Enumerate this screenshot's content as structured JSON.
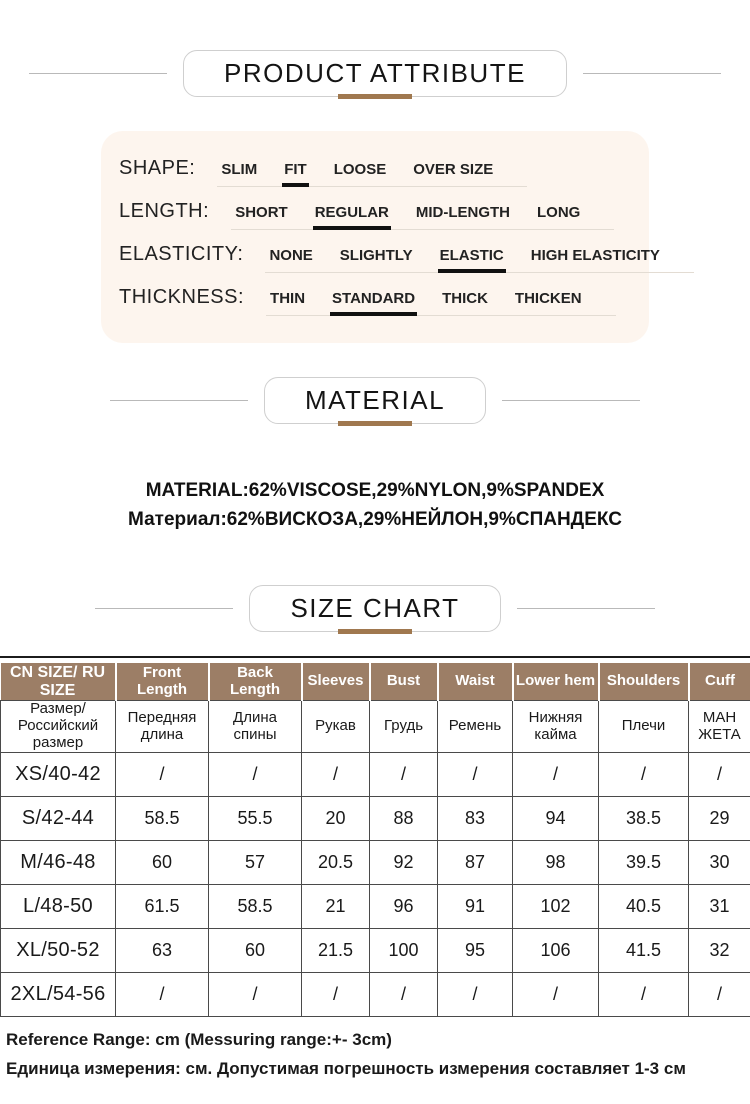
{
  "colors": {
    "accent_brown": "#9c7e66",
    "underline_brown": "#a0784f",
    "panel_bg": "#fdf5ee"
  },
  "sections": {
    "product_attribute_title": "PRODUCT ATTRIBUTE",
    "material_title": "MATERIAL",
    "size_chart_title": "SIZE CHART"
  },
  "attributes": {
    "rows": [
      {
        "label": "SHAPE:",
        "options": [
          "SLIM",
          "FIT",
          "LOOSE",
          "OVER SIZE"
        ],
        "selected": "FIT"
      },
      {
        "label": "LENGTH:",
        "options": [
          "SHORT",
          "REGULAR",
          "MID-LENGTH",
          "LONG"
        ],
        "selected": "REGULAR"
      },
      {
        "label": "ELASTICITY:",
        "options": [
          "NONE",
          "SLIGHTLY",
          "ELASTIC",
          "HIGH ELASTICITY"
        ],
        "selected": "ELASTIC"
      },
      {
        "label": "THICKNESS:",
        "options": [
          "THIN",
          "STANDARD",
          "THICK",
          "THICKEN"
        ],
        "selected": "STANDARD"
      }
    ]
  },
  "material": {
    "line_en": "MATERIAL:62%VISCOSE,29%NYLON,9%SPANDEX",
    "line_ru": "Материал:62%ВИСКОЗА,29%НЕЙЛОН,9%СПАНДЕКС"
  },
  "size_chart": {
    "columns_en": [
      "CN SIZE/ RU SIZE",
      "Front Length",
      "Back Length",
      "Sleeves",
      "Bust",
      "Waist",
      "Lower hem",
      "Shoulders",
      "Cuff"
    ],
    "columns_ru": [
      "Размер/ Российский размер",
      "Передняя длина",
      "Длина спины",
      "Рукав",
      "Грудь",
      "Ремень",
      "Нижняя кайма",
      "Плечи",
      "МАН ЖЕТА"
    ],
    "rows": [
      {
        "size": "XS/40-42",
        "values": [
          "/",
          "/",
          "/",
          "/",
          "/",
          "/",
          "/",
          "/"
        ]
      },
      {
        "size": "S/42-44",
        "values": [
          "58.5",
          "55.5",
          "20",
          "88",
          "83",
          "94",
          "38.5",
          "29"
        ]
      },
      {
        "size": "M/46-48",
        "values": [
          "60",
          "57",
          "20.5",
          "92",
          "87",
          "98",
          "39.5",
          "30"
        ]
      },
      {
        "size": "L/48-50",
        "values": [
          "61.5",
          "58.5",
          "21",
          "96",
          "91",
          "102",
          "40.5",
          "31"
        ]
      },
      {
        "size": "XL/50-52",
        "values": [
          "63",
          "60",
          "21.5",
          "100",
          "95",
          "106",
          "41.5",
          "32"
        ]
      },
      {
        "size": "2XL/54-56",
        "values": [
          "/",
          "/",
          "/",
          "/",
          "/",
          "/",
          "/",
          "/"
        ]
      }
    ]
  },
  "footer": {
    "line_en": "Reference Range: cm (Messuring range:+- 3cm)",
    "line_ru": "Единица измерения: см. Допустимая погрешность измерения составляет 1-3 см"
  }
}
